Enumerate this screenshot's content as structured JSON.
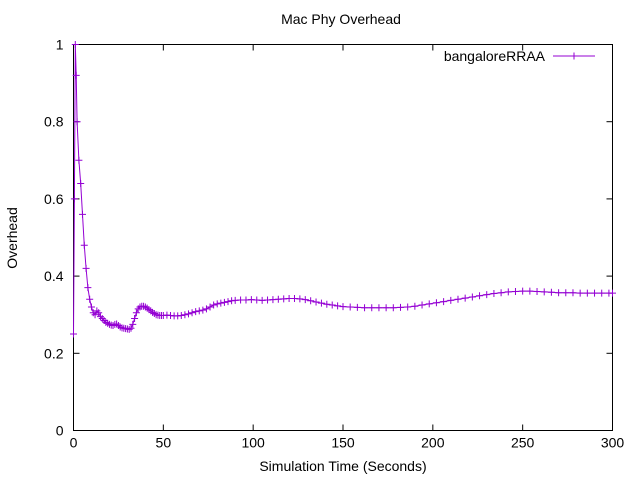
{
  "chart_data": {
    "type": "line",
    "title": "Mac Phy Overhead",
    "xlabel": "Simulation Time (Seconds)",
    "ylabel": "Overhead",
    "xlim": [
      0,
      300
    ],
    "ylim": [
      0,
      1
    ],
    "xticks": [
      0,
      50,
      100,
      150,
      200,
      250,
      300
    ],
    "yticks": [
      0,
      0.2,
      0.4,
      0.6,
      0.8,
      1
    ],
    "xtick_labels": [
      "0",
      "50",
      "100",
      "150",
      "200",
      "250",
      "300"
    ],
    "ytick_labels": [
      "0",
      "0.2",
      "0.4",
      "0.6",
      "0.8",
      "1"
    ],
    "grid": false,
    "legend_position": "top-right",
    "colors": {
      "series": "#9400d3",
      "axes": "#000000"
    },
    "series": [
      {
        "name": "bangaloreRRAA",
        "marker": "plus",
        "x": [
          0,
          0.5,
          1,
          1.5,
          2,
          3,
          4,
          5,
          6,
          7,
          8,
          9,
          10,
          11,
          12,
          13,
          14,
          15,
          16,
          17,
          18,
          19,
          20,
          21,
          22,
          23,
          24,
          25,
          26,
          27,
          28,
          29,
          30,
          31,
          32,
          33,
          34,
          35,
          36,
          37,
          38,
          39,
          40,
          41,
          42,
          43,
          44,
          45,
          46,
          47,
          48,
          49,
          50,
          52,
          54,
          56,
          58,
          60,
          62,
          64,
          66,
          68,
          70,
          72,
          74,
          76,
          78,
          80,
          82,
          84,
          86,
          88,
          90,
          93,
          96,
          99,
          102,
          105,
          108,
          111,
          114,
          117,
          120,
          123,
          126,
          129,
          132,
          135,
          138,
          141,
          144,
          147,
          150,
          154,
          158,
          162,
          166,
          170,
          174,
          178,
          182,
          186,
          190,
          194,
          198,
          202,
          206,
          210,
          214,
          218,
          222,
          226,
          230,
          234,
          238,
          242,
          246,
          250,
          254,
          258,
          262,
          266,
          270,
          274,
          278,
          282,
          286,
          290,
          294,
          298,
          300
        ],
        "y": [
          0.25,
          0.6,
          1.0,
          0.92,
          0.8,
          0.7,
          0.64,
          0.56,
          0.48,
          0.42,
          0.37,
          0.34,
          0.32,
          0.305,
          0.3,
          0.31,
          0.305,
          0.295,
          0.29,
          0.285,
          0.28,
          0.278,
          0.275,
          0.273,
          0.272,
          0.275,
          0.276,
          0.272,
          0.268,
          0.266,
          0.265,
          0.264,
          0.263,
          0.262,
          0.265,
          0.275,
          0.29,
          0.305,
          0.315,
          0.32,
          0.322,
          0.322,
          0.32,
          0.317,
          0.313,
          0.31,
          0.306,
          0.303,
          0.3,
          0.299,
          0.298,
          0.298,
          0.298,
          0.299,
          0.298,
          0.297,
          0.297,
          0.298,
          0.3,
          0.302,
          0.305,
          0.308,
          0.31,
          0.312,
          0.315,
          0.32,
          0.325,
          0.328,
          0.33,
          0.332,
          0.334,
          0.336,
          0.337,
          0.338,
          0.338,
          0.339,
          0.338,
          0.337,
          0.338,
          0.339,
          0.34,
          0.341,
          0.342,
          0.342,
          0.341,
          0.339,
          0.336,
          0.333,
          0.33,
          0.327,
          0.325,
          0.323,
          0.321,
          0.32,
          0.319,
          0.318,
          0.318,
          0.318,
          0.318,
          0.318,
          0.319,
          0.32,
          0.322,
          0.325,
          0.328,
          0.331,
          0.334,
          0.337,
          0.34,
          0.343,
          0.346,
          0.349,
          0.352,
          0.355,
          0.357,
          0.359,
          0.36,
          0.361,
          0.361,
          0.36,
          0.359,
          0.358,
          0.357,
          0.357,
          0.357,
          0.356,
          0.356,
          0.356,
          0.356,
          0.356,
          0.356
        ]
      }
    ]
  }
}
